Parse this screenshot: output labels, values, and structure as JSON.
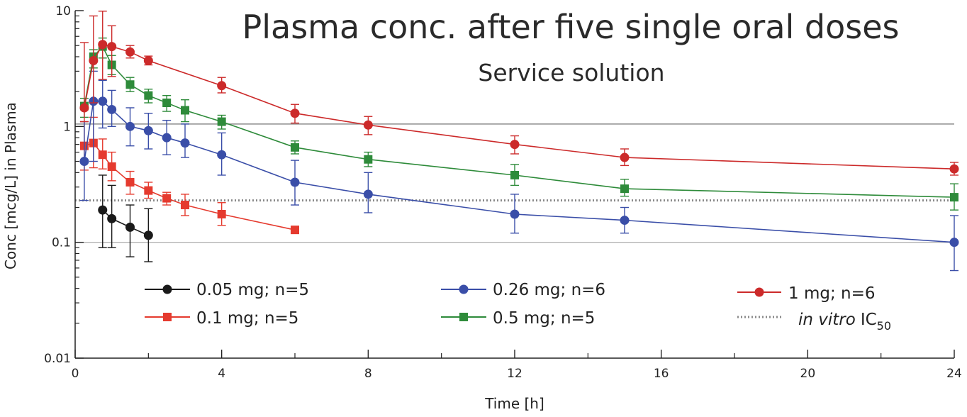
{
  "chart_data": {
    "type": "line",
    "title": "Plasma conc. after five single oral doses",
    "subtitle": "Service solution",
    "xlabel": "Time [h]",
    "ylabel": "Conc [mcg/L] in Plasma",
    "yscale": "log",
    "xlim": [
      0,
      24
    ],
    "ylim": [
      0.01,
      10
    ],
    "x_ticks": [
      0,
      4,
      8,
      12,
      16,
      20,
      24
    ],
    "x_tick_labels": [
      "0",
      "4",
      "8",
      "12",
      "16",
      "20",
      "24"
    ],
    "y_ticks": [
      0.01,
      0.1,
      1,
      10
    ],
    "y_tick_labels": [
      "0.01",
      "0.1",
      "1",
      "10"
    ],
    "reference_lines": [
      {
        "name": "gridline-1",
        "value": 1.05,
        "style": "solid",
        "color": "#8c8c8c"
      },
      {
        "name": "gridline-0.1",
        "value": 0.1,
        "style": "solid",
        "color": "#b4b4b4"
      },
      {
        "name": "in-vitro-ic50",
        "value": 0.23,
        "style": "dotted",
        "color": "#8a8a8a"
      }
    ],
    "series": [
      {
        "name": "0.05 mg; n=5",
        "color": "#1a1a1a",
        "marker": "circle",
        "x": [
          0.75,
          1,
          1.5,
          2
        ],
        "y": [
          0.19,
          0.16,
          0.135,
          0.115
        ],
        "err_low": [
          0.09,
          0.09,
          0.075,
          0.068
        ],
        "err_high": [
          0.38,
          0.31,
          0.21,
          0.195
        ]
      },
      {
        "name": "0.1 mg; n=5",
        "color": "#e53a2e",
        "marker": "square",
        "x": [
          0.25,
          0.5,
          0.75,
          1,
          1.5,
          2,
          2.5,
          3,
          4,
          6
        ],
        "y": [
          0.68,
          0.72,
          0.57,
          0.45,
          0.33,
          0.28,
          0.24,
          0.21,
          0.175,
          0.128
        ],
        "err_low": [
          0.42,
          0.44,
          0.43,
          0.34,
          0.26,
          0.24,
          0.21,
          0.17,
          0.14,
          0.128
        ],
        "err_high": [
          1.1,
          1.2,
          0.78,
          0.6,
          0.41,
          0.33,
          0.27,
          0.26,
          0.22,
          0.128
        ]
      },
      {
        "name": "0.26 mg; n=6",
        "color": "#3a4ea8",
        "marker": "circle",
        "x": [
          0.25,
          0.5,
          0.75,
          1,
          1.5,
          2,
          2.5,
          3,
          4,
          6,
          8,
          12,
          15,
          24
        ],
        "y": [
          0.5,
          1.65,
          1.65,
          1.4,
          1.0,
          0.92,
          0.8,
          0.72,
          0.57,
          0.33,
          0.26,
          0.175,
          0.155,
          0.1
        ],
        "err_low": [
          0.23,
          0.5,
          0.97,
          1.0,
          0.68,
          0.64,
          0.57,
          0.54,
          0.38,
          0.21,
          0.18,
          0.12,
          0.12,
          0.057
        ],
        "err_high": [
          1.1,
          3.0,
          2.5,
          2.05,
          1.45,
          1.3,
          1.13,
          1.05,
          0.88,
          0.51,
          0.4,
          0.26,
          0.2,
          0.17
        ]
      },
      {
        "name": "0.5 mg; n=5",
        "color": "#2e8b3a",
        "marker": "square",
        "x": [
          0.25,
          0.5,
          0.75,
          1,
          1.5,
          2,
          2.5,
          3,
          4,
          6,
          8,
          12,
          15,
          24
        ],
        "y": [
          1.5,
          4.0,
          4.9,
          3.4,
          2.3,
          1.85,
          1.6,
          1.38,
          1.1,
          0.66,
          0.52,
          0.38,
          0.29,
          0.245
        ],
        "err_low": [
          1.2,
          3.2,
          3.9,
          2.8,
          2.0,
          1.6,
          1.35,
          1.1,
          0.95,
          0.58,
          0.45,
          0.31,
          0.25,
          0.19
        ],
        "err_high": [
          1.75,
          4.6,
          5.8,
          4.1,
          2.65,
          2.1,
          1.85,
          1.7,
          1.25,
          0.75,
          0.6,
          0.47,
          0.35,
          0.32
        ]
      },
      {
        "name": "1 mg; n=6",
        "color": "#cc2a2a",
        "marker": "circle",
        "x": [
          0.25,
          0.5,
          0.75,
          1,
          1.5,
          2,
          4,
          6,
          8,
          12,
          15,
          24
        ],
        "y": [
          1.45,
          3.7,
          5.1,
          4.9,
          4.4,
          3.7,
          2.25,
          1.3,
          1.03,
          0.7,
          0.54,
          0.43
        ],
        "err_low": [
          1.1,
          1.6,
          2.55,
          2.7,
          3.9,
          3.4,
          1.95,
          1.07,
          0.85,
          0.58,
          0.46,
          0.38
        ],
        "err_high": [
          5.3,
          9.0,
          9.9,
          7.4,
          5.0,
          4.05,
          2.65,
          1.55,
          1.22,
          0.83,
          0.64,
          0.49
        ]
      }
    ],
    "legend": {
      "entries": [
        {
          "label": "0.05 mg; n=5",
          "series": 0
        },
        {
          "label": "0.1 mg; n=5",
          "series": 1
        },
        {
          "label": "0.26 mg; n=6",
          "series": 2
        },
        {
          "label": "0.5 mg; n=5",
          "series": 3
        },
        {
          "label": "1 mg; n=6",
          "series": 4
        }
      ],
      "ic50_prefix": "in vitro",
      "ic50_label": "IC",
      "ic50_subscript": "50"
    }
  }
}
